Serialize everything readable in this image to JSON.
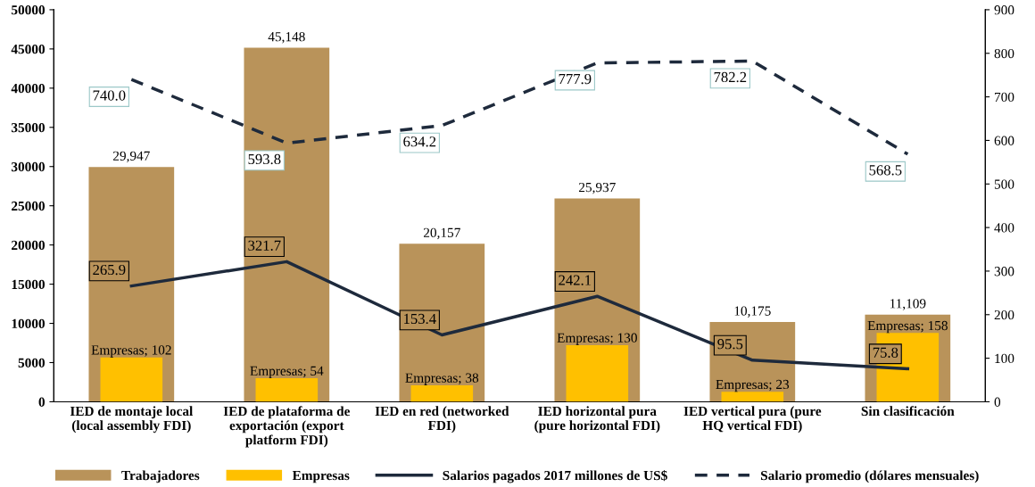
{
  "chart_data": {
    "type": "bar",
    "categories": [
      "IED de montaje local (local assembly FDI)",
      "IED de plataforma de exportación (export platform FDI)",
      "IED en red (networked FDI)",
      "IED horizontal pura (pure horizontal FDI)",
      "IED vertical pura (pure HQ vertical FDI)",
      "Sin clasificación"
    ],
    "series": [
      {
        "name": "Trabajadores",
        "color": "#b9935a",
        "values": [
          29947,
          45148,
          20157,
          25937,
          10175,
          11109
        ],
        "value_labels": [
          "29,947",
          "45,148",
          "20,157",
          "25,937",
          "10,175",
          "11,109"
        ]
      },
      {
        "name": "Empresas",
        "axis": "y2",
        "color": "#ffc000",
        "values": [
          102,
          54,
          38,
          130,
          23,
          158
        ],
        "value_labels": [
          "Empresas; 102",
          "Empresas; 54",
          "Empresas; 38",
          "Empresas; 130",
          "Empresas; 23",
          "Empresas; 158"
        ]
      },
      {
        "name": "Salarios pagados 2017 millones de US$",
        "type": "line",
        "axis": "y2",
        "color": "#1e2a3c",
        "line_style": "solid",
        "values": [
          265.9,
          321.7,
          153.4,
          242.1,
          95.5,
          75.8
        ],
        "value_labels": [
          "265.9",
          "321.7",
          "153.4",
          "242.1",
          "95.5",
          "75.8"
        ]
      },
      {
        "name": "Salario promedio (dólares mensuales)",
        "type": "line",
        "axis": "y2",
        "color": "#1e2a3c",
        "line_style": "dashed",
        "values": [
          740.0,
          593.8,
          634.2,
          777.9,
          782.2,
          568.5
        ],
        "value_labels": [
          "740.0",
          "593.8",
          "634.2",
          "777.9",
          "782.2",
          "568.5"
        ]
      }
    ],
    "ylim": [
      0,
      50000
    ],
    "yticks": [
      0,
      5000,
      10000,
      15000,
      20000,
      25000,
      30000,
      35000,
      40000,
      45000,
      50000
    ],
    "y2lim": [
      0,
      900
    ],
    "y2ticks": [
      0,
      100,
      200,
      300,
      400,
      500,
      600,
      700,
      800,
      900
    ],
    "grid": false,
    "legend": "bottom"
  }
}
